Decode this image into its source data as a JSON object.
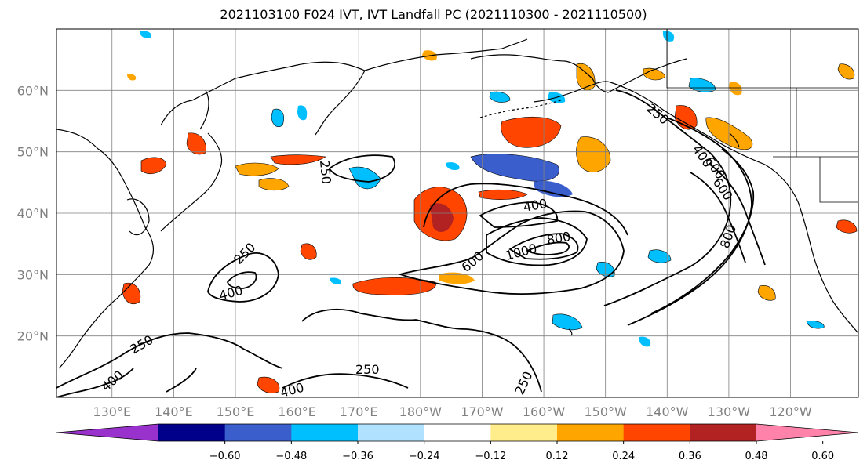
{
  "title": "2021103100 F024 IVT, IVT Landfall PC (2021110300 - 2021110500)",
  "lat_labels": [
    "20°N",
    "30°N",
    "40°N",
    "50°N",
    "60°N"
  ],
  "lat_values": [
    20,
    30,
    40,
    50,
    60
  ],
  "lon_labels": [
    "130°E",
    "140°E",
    "150°E",
    "160°E",
    "170°E",
    "180°W",
    "170°W",
    "160°W",
    "150°W",
    "140°W",
    "130°W",
    "120°W"
  ],
  "lon_values": [
    130,
    140,
    150,
    160,
    170,
    180,
    190,
    200,
    210,
    220,
    230,
    240
  ],
  "map_extent": {
    "lon": [
      121,
      251
    ],
    "lat": [
      10,
      70
    ]
  },
  "colorbar": {
    "tick_labels": [
      "−0.60",
      "−0.48",
      "−0.36",
      "−0.24",
      "−0.12",
      "0.12",
      "0.24",
      "0.36",
      "0.48",
      "0.60"
    ],
    "colors": [
      "#9932cc",
      "#00008b",
      "#3a5fcd",
      "#00bfff",
      "#b0e2ff",
      "#ffffff",
      "#ffec8b",
      "#ffa500",
      "#ff4500",
      "#b22222",
      "#ff82ab"
    ]
  },
  "contour_labels": [
    "250",
    "250",
    "250",
    "250",
    "250",
    "250",
    "400",
    "400",
    "400",
    "400",
    "400",
    "600",
    "600",
    "600",
    "800",
    "800",
    "1000"
  ]
}
